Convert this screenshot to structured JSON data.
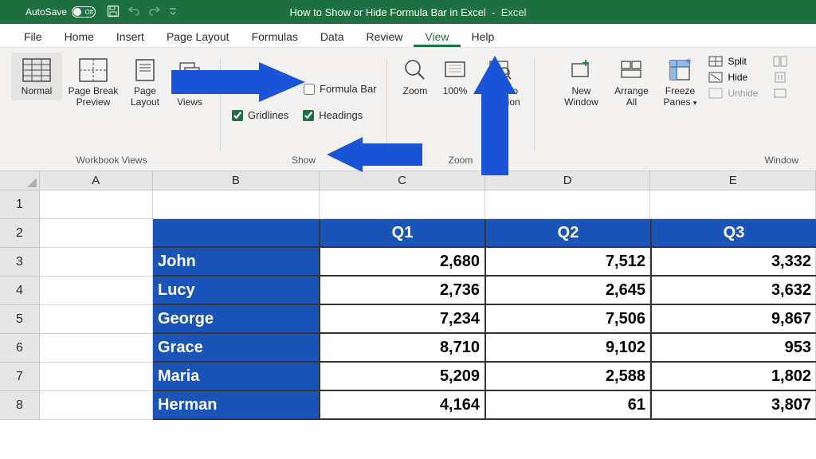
{
  "titlebar": {
    "autosave_label": "AutoSave",
    "autosave_state": "Off",
    "doc_title": "How to Show or Hide Formula Bar in Excel",
    "app_name": "Excel"
  },
  "tabs": {
    "items": [
      "File",
      "Home",
      "Insert",
      "Page Layout",
      "Formulas",
      "Data",
      "Review",
      "View",
      "Help"
    ],
    "active_index": 7
  },
  "ribbon": {
    "group_workbook_views": {
      "label": "Workbook Views",
      "normal": "Normal",
      "page_break": "Page Break Preview",
      "page_layout": "Page Layout",
      "custom_views": "Custom Views"
    },
    "group_show": {
      "label": "Show",
      "formula_bar": "Formula Bar",
      "gridlines": "Gridlines",
      "headings": "Headings",
      "formula_bar_checked": false,
      "gridlines_checked": true,
      "headings_checked": true
    },
    "group_zoom": {
      "label": "Zoom",
      "zoom": "Zoom",
      "hundred": "100%",
      "zoom_to_selection": "Zoom to Selection"
    },
    "group_window": {
      "label": "Window",
      "new_window": "New Window",
      "arrange_all": "Arrange All",
      "freeze_panes": "Freeze Panes",
      "split": "Split",
      "hide": "Hide",
      "unhide": "Unhide"
    }
  },
  "sheet": {
    "col_widths": {
      "A": 142,
      "B": 210,
      "C": 208,
      "D": 208,
      "E": 208
    },
    "row_heights": {
      "r1": 36,
      "other": 36
    },
    "columns": [
      "A",
      "B",
      "C",
      "D",
      "E"
    ],
    "row_numbers": [
      "1",
      "2",
      "3",
      "4",
      "5",
      "6",
      "7",
      "8"
    ],
    "data": {
      "header_bg": "#1b54b8",
      "header_fg": "#ffffff",
      "border_color": "#333333",
      "value_fontsize": 20,
      "quarters": [
        "Q1",
        "Q2",
        "Q3"
      ],
      "rows": [
        {
          "name": "John",
          "values": [
            "2,680",
            "7,512",
            "3,332"
          ]
        },
        {
          "name": "Lucy",
          "values": [
            "2,736",
            "2,645",
            "3,632"
          ]
        },
        {
          "name": "George",
          "values": [
            "7,234",
            "7,506",
            "9,867"
          ]
        },
        {
          "name": "Grace",
          "values": [
            "8,710",
            "9,102",
            "953"
          ]
        },
        {
          "name": "Maria",
          "values": [
            "5,209",
            "2,588",
            "1,802"
          ]
        },
        {
          "name": "Herman",
          "values": [
            "4,164",
            "61",
            "3,807"
          ]
        }
      ]
    }
  },
  "colors": {
    "brand_green": "#1e6f42",
    "ribbon_bg": "#f3f2f1",
    "grid_header_bg": "#e6e6e6",
    "arrow_blue": "#1b54d6"
  }
}
